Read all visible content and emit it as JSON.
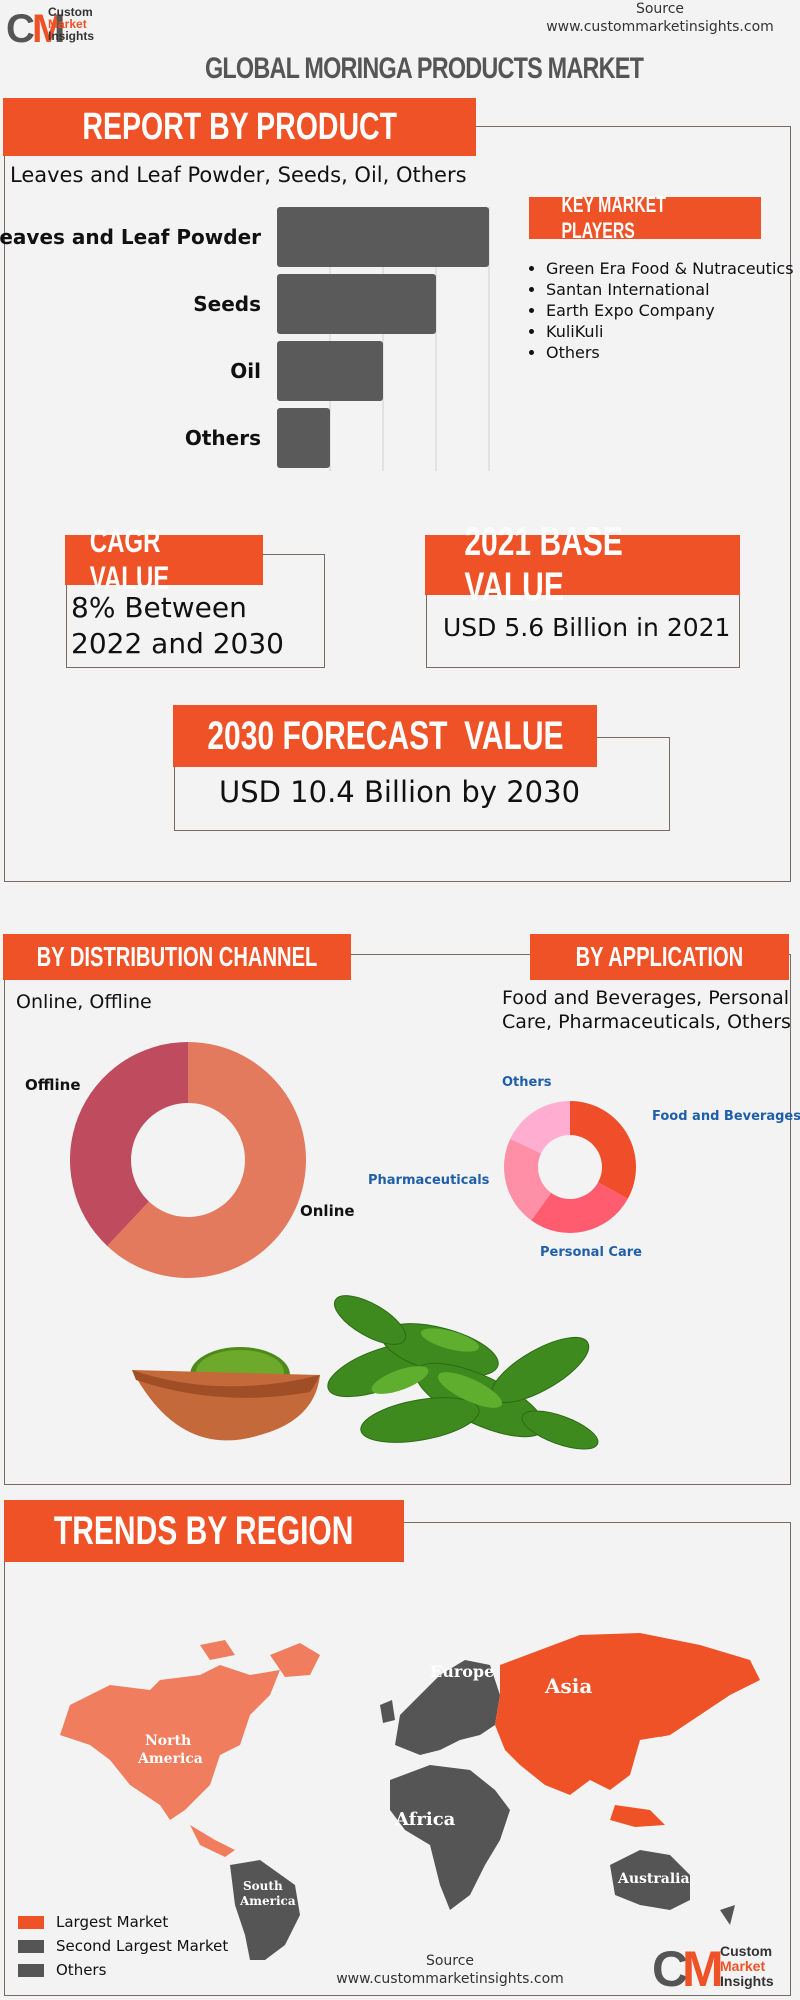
{
  "header": {
    "source_label": "Source",
    "source_url": "www.custommarketinsights.com",
    "logo_text": [
      "Custom",
      "Market",
      "Insights"
    ],
    "logo_letters": "CMI",
    "title": "GLOBAL MORINGA PRODUCTS MARKET"
  },
  "product": {
    "banner": "REPORT BY PRODUCT",
    "subtitle": "Leaves and Leaf Powder, Seeds, Oil, Others",
    "chart_data": {
      "type": "bar",
      "orientation": "horizontal",
      "categories": [
        "Leaves and Leaf Powder",
        "Seeds",
        "Oil",
        "Others"
      ],
      "values": [
        4,
        3,
        2,
        1
      ],
      "grid": true,
      "color": "#5a5a5a"
    }
  },
  "key_players": {
    "banner": "KEY MARKET PLAYERS",
    "items": [
      "Green Era Food & Nutraceutics",
      "Santan International",
      "Earth Expo Company",
      "KuliKuli",
      "Others"
    ]
  },
  "cagr": {
    "banner": "CAGR VALUE",
    "text": "8% Between 2022 and 2030"
  },
  "base": {
    "banner": "2021 BASE VALUE",
    "text": "USD 5.6 Billion in 2021"
  },
  "forecast": {
    "banner": "2030 FORECAST  VALUE",
    "text": "USD 10.4 Billion by 2030"
  },
  "distribution": {
    "banner": "BY DISTRIBUTION CHANNEL",
    "subtitle": "Online, Offline",
    "chart_data": {
      "type": "pie",
      "donut": true,
      "labels": [
        "Online",
        "Offline"
      ],
      "values": [
        62,
        38
      ],
      "colors": [
        "#e37a5e",
        "#bf4b5e"
      ]
    }
  },
  "application": {
    "banner": "BY APPLICATION",
    "subtitle": "Food and Beverages, Personal Care, Pharmaceuticals, Others",
    "chart_data": {
      "type": "pie",
      "donut": true,
      "labels": [
        "Food and Beverages",
        "Personal Care",
        "Pharmaceuticals",
        "Others"
      ],
      "values": [
        33,
        27,
        22,
        18
      ],
      "colors": [
        "#f04d2a",
        "#ff5c6f",
        "#ff8fa6",
        "#ffadd1"
      ],
      "label_color": "#1f5fa8"
    }
  },
  "region": {
    "banner": "TRENDS BY REGION",
    "labels": {
      "north_america": "North America",
      "south_america": "South America",
      "europe": "Europe",
      "africa": "Africa",
      "asia": "Asia",
      "australia": "Australia"
    },
    "legend": [
      {
        "label": "Largest Market",
        "color": "#f05228"
      },
      {
        "label": "Second Largest Market",
        "color": "#555555"
      },
      {
        "label": "Others",
        "color": "#555555"
      }
    ]
  },
  "footer": {
    "source_label": "Source",
    "source_url": "www.custommarketinsights.com",
    "logo_text": [
      "Custom",
      "Market",
      "Insights"
    ]
  }
}
